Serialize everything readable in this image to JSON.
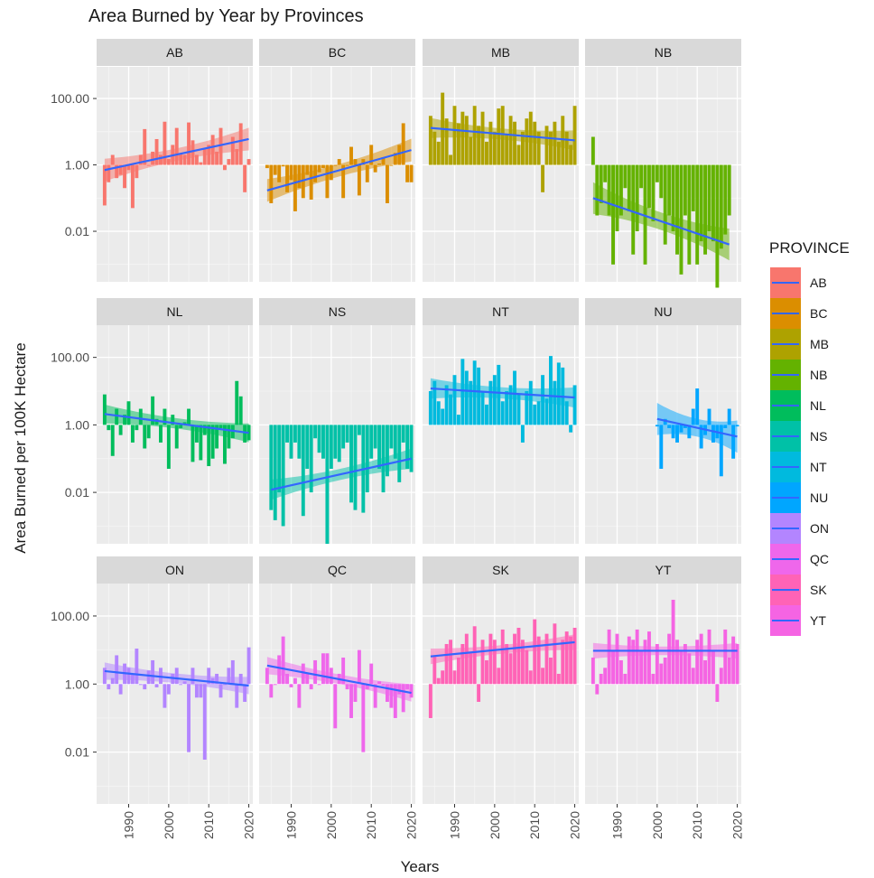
{
  "chart_data": {
    "type": "bar",
    "title": "Area Burned by Year by Provinces",
    "xlabel": "Years",
    "ylabel": "Area Burned per 100K Hectare",
    "y_scale": "log10",
    "ylim": [
      0.0003,
      900
    ],
    "xlim": [
      1982,
      2021
    ],
    "x_ticks": [
      1990,
      2000,
      2010,
      2020
    ],
    "y_ticks": [
      {
        "value": 100,
        "label": "100.00"
      },
      {
        "value": 1,
        "label": "1.00"
      },
      {
        "value": 0.01,
        "label": "0.01"
      }
    ],
    "legend": {
      "title": "PROVINCE",
      "placement": "right"
    },
    "trend_line_color": "#3366ff",
    "grid": true,
    "panels": [
      {
        "name": "AB",
        "color": "#f8766d",
        "start": 1984,
        "end": 2020,
        "trend": [
          0.7,
          6.0
        ],
        "band": 2.2,
        "values": [
          0.06,
          0.3,
          2.0,
          0.4,
          0.5,
          0.2,
          0.7,
          0.05,
          0.4,
          2.0,
          12.0,
          1.0,
          2.5,
          6.0,
          2.0,
          20.0,
          1.5,
          4.0,
          13.0,
          2.2,
          2.0,
          19.0,
          5.5,
          2.0,
          1.2,
          3.0,
          4.0,
          8.0,
          2.5,
          13.0,
          0.7,
          1.5,
          7.0,
          3.0,
          18.0,
          0.15,
          1.5
        ]
      },
      {
        "name": "BC",
        "color": "#db8e00",
        "start": 1984,
        "end": 2020,
        "trend": [
          0.17,
          2.8
        ],
        "band": 2.2,
        "values": [
          0.8,
          0.07,
          0.5,
          0.3,
          0.9,
          0.15,
          0.35,
          0.04,
          0.2,
          0.1,
          0.5,
          0.09,
          0.3,
          0.6,
          0.8,
          0.1,
          0.35,
          1.0,
          1.5,
          0.1,
          1.0,
          3.5,
          1.5,
          0.12,
          1.5,
          0.3,
          4.0,
          0.6,
          1.1,
          1.7,
          0.07,
          1.0,
          2.3,
          4.0,
          18.0,
          0.3,
          0.3
        ]
      },
      {
        "name": "MB",
        "color": "#aea200",
        "start": 1984,
        "end": 2020,
        "trend": [
          13.0,
          5.5
        ],
        "band": 2.0,
        "values": [
          30.0,
          10.0,
          5.0,
          150.0,
          25.0,
          2.0,
          60.0,
          18.0,
          40.0,
          30.0,
          7.0,
          60.0,
          15.0,
          40.0,
          5.0,
          20.0,
          10.0,
          50.0,
          60.0,
          8.0,
          30.0,
          20.0,
          4.0,
          10.0,
          25.0,
          40.0,
          20.0,
          10.0,
          0.15,
          15.0,
          10.0,
          20.0,
          5.0,
          30.0,
          10.0,
          4.0,
          60.0
        ]
      },
      {
        "name": "NB",
        "color": "#64b200",
        "start": 1984,
        "end": 2018,
        "trend": [
          0.1,
          0.004
        ],
        "band": 3.0,
        "values": [
          7.0,
          0.03,
          0.07,
          0.3,
          0.03,
          0.001,
          0.01,
          0.03,
          0.2,
          0.04,
          0.002,
          0.01,
          0.2,
          0.001,
          0.05,
          0.02,
          0.3,
          0.1,
          0.004,
          0.03,
          0.01,
          0.002,
          0.0005,
          0.03,
          0.001,
          0.04,
          0.001,
          0.005,
          0.002,
          0.01,
          0.005,
          0.0002,
          0.003,
          0.008,
          0.03
        ]
      },
      {
        "name": "NL",
        "color": "#00bd5c",
        "start": 1984,
        "end": 2020,
        "trend": [
          2.1,
          0.58
        ],
        "band": 1.9,
        "values": [
          8.0,
          0.7,
          0.12,
          3.0,
          0.5,
          2.0,
          5.0,
          0.3,
          0.7,
          3.0,
          0.2,
          0.4,
          7.0,
          1.5,
          0.3,
          3.0,
          0.05,
          2.0,
          0.2,
          0.8,
          1.2,
          3.0,
          0.08,
          0.3,
          0.09,
          0.5,
          0.06,
          0.1,
          0.2,
          0.8,
          0.07,
          0.2,
          0.4,
          20.0,
          7.0,
          0.3,
          0.35
        ]
      },
      {
        "name": "NS",
        "color": "#00c1a7",
        "start": 1985,
        "end": 2020,
        "trend": [
          0.012,
          0.1
        ],
        "band": 2.0,
        "values": [
          0.003,
          0.0015,
          0.01,
          0.001,
          0.3,
          0.1,
          0.3,
          0.1,
          0.002,
          0.05,
          0.01,
          0.4,
          0.15,
          0.1,
          0.0003,
          0.05,
          0.1,
          0.08,
          0.2,
          0.3,
          0.005,
          0.003,
          0.5,
          0.0025,
          0.01,
          0.1,
          0.2,
          0.05,
          0.01,
          0.03,
          0.2,
          0.1,
          0.02,
          0.3,
          0.05,
          0.04
        ]
      },
      {
        "name": "NT",
        "color": "#00bade",
        "start": 1984,
        "end": 2020,
        "trend": [
          12.0,
          6.5
        ],
        "band": 2.0,
        "values": [
          10.0,
          20.0,
          5.0,
          3.0,
          15.0,
          8.0,
          30.0,
          2.0,
          90.0,
          40.0,
          20.0,
          80.0,
          50.0,
          10.0,
          4.0,
          20.0,
          30.0,
          60.0,
          5.0,
          10.0,
          15.0,
          40.0,
          8.0,
          0.3,
          10.0,
          20.0,
          4.0,
          5.0,
          30.0,
          6.0,
          110.0,
          20.0,
          70.0,
          50.0,
          5.0,
          0.6,
          15.0
        ]
      },
      {
        "name": "NU",
        "color": "#00a6ff",
        "start": 2000,
        "end": 2020,
        "trend": [
          1.5,
          0.45
        ],
        "band": 3.0,
        "values": [
          0.9,
          0.05,
          1.5,
          0.8,
          0.4,
          0.3,
          0.6,
          0.8,
          0.4,
          3.0,
          12.0,
          0.2,
          0.5,
          3.0,
          0.3,
          0.4,
          0.03,
          0.8,
          3.0,
          0.1,
          0.9
        ]
      },
      {
        "name": "ON",
        "color": "#b385ff",
        "start": 1984,
        "end": 2020,
        "trend": [
          2.4,
          0.9
        ],
        "band": 1.8,
        "values": [
          3.0,
          0.7,
          1.5,
          7.0,
          0.5,
          4.0,
          3.0,
          2.0,
          11.0,
          1.0,
          0.7,
          2.5,
          5.0,
          0.8,
          3.0,
          0.2,
          0.5,
          2.0,
          3.0,
          1.0,
          1.2,
          0.01,
          3.0,
          0.4,
          0.4,
          0.006,
          3.0,
          1.5,
          2.0,
          0.4,
          1.0,
          3.0,
          5.0,
          0.2,
          2.0,
          0.3,
          12.0
        ]
      },
      {
        "name": "QC",
        "color": "#ef67eb",
        "start": 1984,
        "end": 2020,
        "trend": [
          3.5,
          0.55
        ],
        "band": 1.8,
        "values": [
          3.0,
          0.4,
          1.0,
          7.0,
          25.0,
          2.0,
          0.8,
          1.5,
          0.2,
          4.0,
          2.0,
          0.7,
          5.0,
          1.0,
          8.0,
          8.0,
          3.0,
          0.05,
          2.0,
          6.0,
          0.7,
          0.1,
          0.3,
          10.0,
          0.01,
          0.7,
          4.0,
          0.2,
          1.2,
          0.9,
          0.3,
          0.2,
          0.1,
          0.5,
          0.15,
          0.7,
          0.4
        ]
      },
      {
        "name": "SK",
        "color": "#ff63b6",
        "start": 1984,
        "end": 2020,
        "trend": [
          6.5,
          17.0
        ],
        "band": 1.7,
        "values": [
          0.1,
          7.0,
          1.5,
          2.5,
          15.0,
          20.0,
          2.5,
          6.0,
          15.0,
          30.0,
          8.0,
          50.0,
          0.3,
          20.0,
          5.0,
          30.0,
          20.0,
          3.0,
          40.0,
          15.0,
          8.0,
          30.0,
          45.0,
          20.0,
          10.0,
          2.5,
          80.0,
          25.0,
          3.0,
          30.0,
          6.0,
          60.0,
          2.0,
          20.0,
          35.0,
          25.0,
          45.0
        ]
      },
      {
        "name": "YT",
        "color": "#f564e3",
        "start": 1984,
        "end": 2020,
        "trend": [
          9.5,
          9.5
        ],
        "band": 1.7,
        "values": [
          6.0,
          0.5,
          2.0,
          3.0,
          40.0,
          10.0,
          30.0,
          5.0,
          2.0,
          25.0,
          20.0,
          40.0,
          10.0,
          20.0,
          35.0,
          2.0,
          15.0,
          4.0,
          6.0,
          30.0,
          300.0,
          20.0,
          10.0,
          15.0,
          8.0,
          3.0,
          20.0,
          30.0,
          5.0,
          40.0,
          10.0,
          0.3,
          3.0,
          40.0,
          6.0,
          25.0,
          15.0
        ]
      }
    ]
  }
}
